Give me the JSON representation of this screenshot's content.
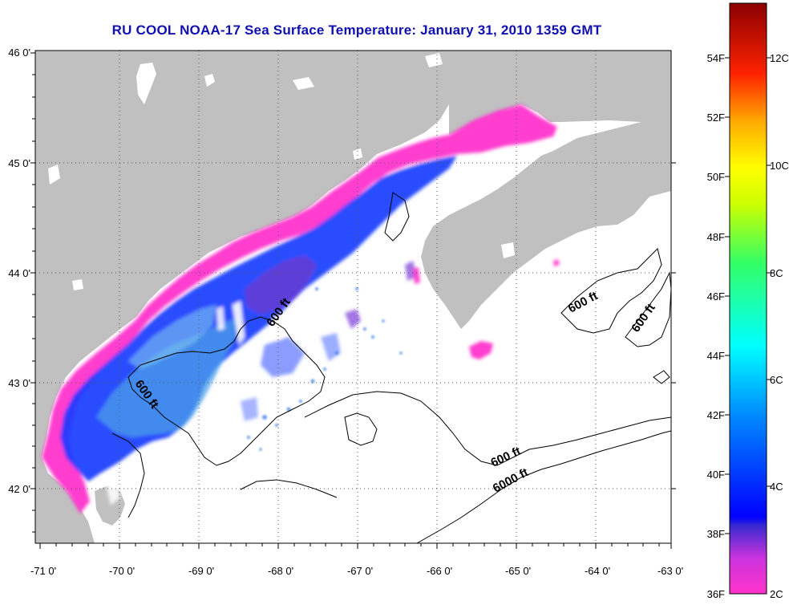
{
  "title": "RU COOL  NOAA-17  Sea Surface Temperature:  January 31, 2010 1359 GMT",
  "map": {
    "lon_ticks": [
      "-71 0'",
      "-70 0'",
      "-69 0'",
      "-68 0'",
      "-67 0'",
      "-66 0'",
      "-65 0'",
      "-64 0'",
      "-63 0'"
    ],
    "lat_ticks": [
      "46 0'",
      "45 0'",
      "44 0'",
      "43 0'",
      "42 0'"
    ],
    "contour_labels": [
      "600 ft",
      "600 ft",
      "600 ft",
      "600 ft",
      "6000 ft",
      "600 ft"
    ]
  },
  "colorbar": {
    "fahrenheit_labels": [
      "54F",
      "52F",
      "50F",
      "48F",
      "46F",
      "44F",
      "42F",
      "40F",
      "38F",
      "36F"
    ],
    "celsius_labels": [
      "12C",
      "10C",
      "8C",
      "6C",
      "4C",
      "2C"
    ]
  },
  "colors": {
    "land": "#c0c0c0",
    "ocean": "#ffffff",
    "title": "#1010b0",
    "cold_magenta": "#ff33cc",
    "blue": "#1a3cff",
    "light_blue": "#4aa0e8"
  }
}
